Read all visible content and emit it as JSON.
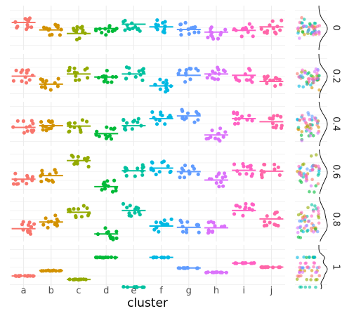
{
  "chart_data": {
    "type": "scatter",
    "title": "",
    "xlabel": "cluster",
    "ylabel": "",
    "categories": [
      "a",
      "b",
      "c",
      "d",
      "e",
      "f",
      "g",
      "h",
      "i",
      "j"
    ],
    "colors": [
      "#F8766D",
      "#D39200",
      "#93AA00",
      "#00BA38",
      "#00C19F",
      "#00B9E3",
      "#619CFF",
      "#DB72FB",
      "#FF61C3",
      "#FF66A8"
    ],
    "facet_labels": [
      "0",
      "0.2",
      "0.4",
      "0.6",
      "0.8",
      "1"
    ],
    "grid": true,
    "legend": "none",
    "series": [
      {
        "facet": "0",
        "means": [
          0.62,
          0.45,
          0.37,
          0.48,
          0.58,
          0.52,
          0.46,
          0.4,
          0.44,
          0.52
        ]
      },
      {
        "facet": "0.2",
        "means": [
          0.5,
          0.32,
          0.55,
          0.48,
          0.55,
          0.28,
          0.52,
          0.55,
          0.52,
          0.38
        ]
      },
      {
        "facet": "0.4",
        "means": [
          0.42,
          0.46,
          0.45,
          0.28,
          0.46,
          0.62,
          0.68,
          0.25,
          0.62,
          0.55
        ]
      },
      {
        "facet": "0.6",
        "means": [
          0.33,
          0.41,
          0.75,
          0.16,
          0.52,
          0.58,
          0.5,
          0.31,
          0.53,
          0.51
        ]
      },
      {
        "facet": "0.8",
        "means": [
          0.29,
          0.44,
          0.66,
          0.17,
          0.7,
          0.35,
          0.32,
          0.31,
          0.7,
          0.51
        ]
      },
      {
        "facet": "1",
        "means": [
          0.3,
          0.42,
          0.22,
          0.72,
          0.05,
          0.72,
          0.48,
          0.38,
          0.59,
          0.5
        ]
      }
    ],
    "marginal": "jittered points with density outline per facet"
  }
}
